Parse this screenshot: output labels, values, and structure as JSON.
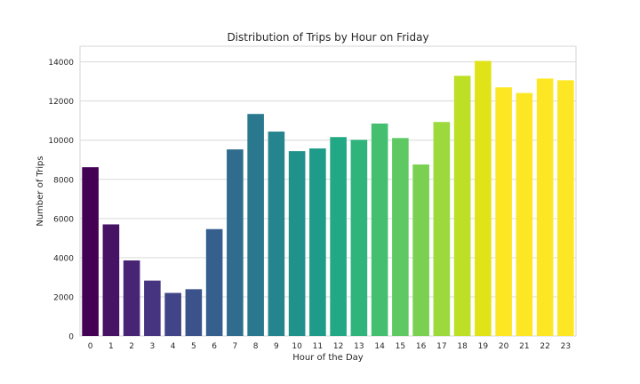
{
  "chart_data": {
    "type": "bar",
    "title": "Distribution of Trips by Hour on Friday",
    "xlabel": "Hour of the Day",
    "ylabel": "Number of Trips",
    "categories": [
      "0",
      "1",
      "2",
      "3",
      "4",
      "5",
      "6",
      "7",
      "8",
      "9",
      "10",
      "11",
      "12",
      "13",
      "14",
      "15",
      "16",
      "17",
      "18",
      "19",
      "20",
      "21",
      "22",
      "23"
    ],
    "values": [
      8620,
      5700,
      3860,
      2830,
      2200,
      2390,
      5460,
      9530,
      11340,
      10440,
      9440,
      9580,
      10160,
      10020,
      10850,
      10110,
      8760,
      10930,
      13290,
      14050,
      12700,
      12410,
      13150,
      13060
    ],
    "ylim": [
      0,
      14800
    ],
    "yticks": [
      "0",
      "2000",
      "4000",
      "6000",
      "8000",
      "10000",
      "12000",
      "14000"
    ],
    "grid": true,
    "colors": [
      "#440154",
      "#471365",
      "#482475",
      "#463480",
      "#414487",
      "#3b528b",
      "#355f8d",
      "#2f6c8e",
      "#2a788e",
      "#25848e",
      "#21918c",
      "#1e9c89",
      "#22a884",
      "#2fb47c",
      "#44bf70",
      "#5ec962",
      "#7ad151",
      "#9bd93c",
      "#bddf26",
      "#dfe318",
      "#fde725",
      "#fde725",
      "#fde725",
      "#fde725"
    ]
  }
}
